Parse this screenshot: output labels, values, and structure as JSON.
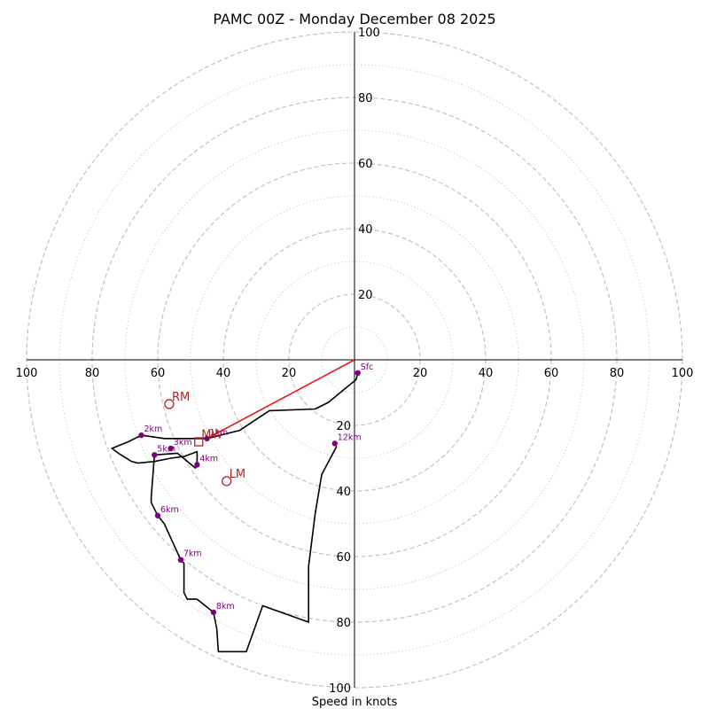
{
  "chart_data": {
    "type": "hodograph",
    "title": "PAMC 00Z - Monday December 08 2025",
    "xlabel": "Speed in knots",
    "range": [
      -100,
      100
    ],
    "rings_major": [
      20,
      40,
      60,
      80,
      100
    ],
    "rings_minor": [
      10,
      30,
      50,
      70,
      90
    ],
    "tick_labels_x_negative": [
      "100",
      "80",
      "60",
      "40",
      "20"
    ],
    "tick_labels_x_positive": [
      "20",
      "40",
      "60",
      "80",
      "100"
    ],
    "tick_labels_y_positive": [
      "20",
      "40",
      "60",
      "80",
      "100"
    ],
    "tick_labels_y_negative": [
      "20",
      "40",
      "60",
      "80",
      "100"
    ],
    "trace": [
      [
        1,
        -4
      ],
      [
        0.5,
        -6
      ],
      [
        -8,
        -13
      ],
      [
        -12,
        -15
      ],
      [
        -26,
        -15.5
      ],
      [
        -35,
        -21.5
      ],
      [
        -45,
        -24
      ],
      [
        -58,
        -24
      ],
      [
        -65,
        -23
      ],
      [
        -69,
        -25
      ],
      [
        -74,
        -27
      ],
      [
        -72,
        -28.5
      ],
      [
        -68,
        -31
      ],
      [
        -66,
        -31.5
      ],
      [
        -61,
        -31
      ],
      [
        -56,
        -30
      ],
      [
        -52,
        -29.5
      ],
      [
        -48,
        -28
      ],
      [
        -48,
        -32
      ],
      [
        -48.5,
        -33
      ],
      [
        -54,
        -28.5
      ],
      [
        -61,
        -29
      ],
      [
        -62,
        -42
      ],
      [
        -62,
        -43.5
      ],
      [
        -60,
        -47.5
      ],
      [
        -58,
        -50
      ],
      [
        -53,
        -61
      ],
      [
        -52,
        -62
      ],
      [
        -52,
        -71
      ],
      [
        -51,
        -73
      ],
      [
        -48,
        -73
      ],
      [
        -43,
        -77
      ],
      [
        -42,
        -82
      ],
      [
        -41.5,
        -89
      ],
      [
        -33,
        -89
      ],
      [
        -28,
        -75
      ],
      [
        -14,
        -80
      ],
      [
        -14,
        -63
      ],
      [
        -12,
        -47
      ],
      [
        -10,
        -35
      ],
      [
        -5.5,
        -26.5
      ],
      [
        -6,
        -25.5
      ]
    ],
    "height_points": [
      {
        "label": "Sfc",
        "u": 1,
        "v": -4
      },
      {
        "label": "1km",
        "u": -45,
        "v": -24
      },
      {
        "label": "2km",
        "u": -65,
        "v": -23
      },
      {
        "label": "3km",
        "u": -56,
        "v": -27
      },
      {
        "label": "4km",
        "u": -48,
        "v": -32
      },
      {
        "label": "5km",
        "u": -61,
        "v": -29
      },
      {
        "label": "6km",
        "u": -60,
        "v": -47.5
      },
      {
        "label": "7km",
        "u": -53,
        "v": -61
      },
      {
        "label": "8km",
        "u": -43,
        "v": -77
      },
      {
        "label": "12km",
        "u": -6,
        "v": -25.5
      }
    ],
    "storm_motions": [
      {
        "label": "RM",
        "u": -56.5,
        "v": -13.5,
        "marker": "circle"
      },
      {
        "label": "MW",
        "u": -47.5,
        "v": -25,
        "marker": "square"
      },
      {
        "label": "LM",
        "u": -39,
        "v": -37,
        "marker": "circle"
      }
    ],
    "shear_vector": {
      "from": [
        0,
        0
      ],
      "to": [
        -45,
        -24
      ]
    },
    "colors": {
      "trace": "#000000",
      "shear": "#ee1111",
      "height_points": "#800080",
      "storm_motion": "#b22222",
      "ring": "#bdbdbd"
    },
    "grid": true
  }
}
